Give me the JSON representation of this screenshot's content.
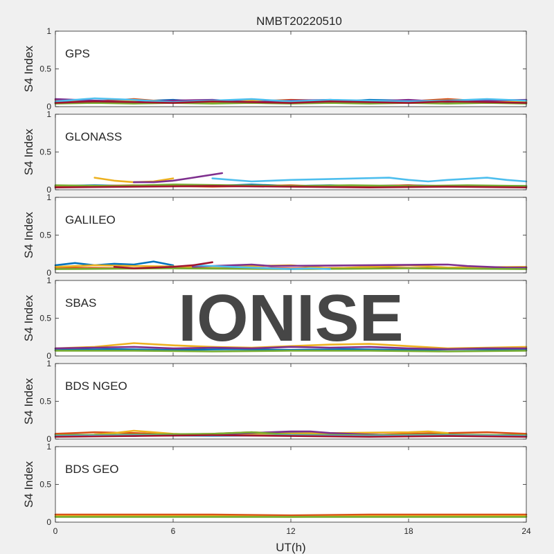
{
  "chart_data": {
    "type": "line",
    "title": "NMBT20220510",
    "xlabel": "UT(h)",
    "xlim": [
      0,
      24
    ],
    "xticks": [
      0,
      6,
      12,
      18,
      24
    ],
    "xtick_labels": [
      "0",
      "6",
      "12",
      "18",
      "24"
    ],
    "watermark": "IONISE",
    "series_colors": [
      "#0072BD",
      "#D95319",
      "#EDB120",
      "#7E2F8E",
      "#77AC30",
      "#4DBEEE",
      "#A2142F"
    ],
    "panels": [
      {
        "label": "GPS",
        "ylabel": "S4 Index",
        "ylim": [
          0,
          1
        ],
        "yticks": [
          0,
          0.5,
          1
        ],
        "ytick_labels": [
          "0",
          "0.5",
          "1"
        ],
        "series": [
          {
            "color": "#0072BD",
            "x": [
              0,
              2,
              4,
              6,
              8,
              10,
              12,
              14,
              16,
              18,
              20,
              22,
              24
            ],
            "y": [
              0.06,
              0.08,
              0.07,
              0.09,
              0.06,
              0.08,
              0.07,
              0.06,
              0.09,
              0.08,
              0.07,
              0.09,
              0.08
            ]
          },
          {
            "color": "#D95319",
            "x": [
              0,
              2,
              4,
              6,
              8,
              10,
              12,
              14,
              16,
              18,
              20,
              22,
              24
            ],
            "y": [
              0.09,
              0.07,
              0.1,
              0.06,
              0.08,
              0.07,
              0.09,
              0.08,
              0.06,
              0.07,
              0.1,
              0.07,
              0.06
            ]
          },
          {
            "color": "#EDB120",
            "x": [
              0,
              2,
              4,
              6,
              8,
              10,
              12,
              14,
              16,
              18,
              20,
              22,
              24
            ],
            "y": [
              0.05,
              0.06,
              0.08,
              0.07,
              0.05,
              0.09,
              0.06,
              0.07,
              0.05,
              0.06,
              0.08,
              0.06,
              0.07
            ]
          },
          {
            "color": "#7E2F8E",
            "x": [
              0,
              2,
              4,
              6,
              8,
              10,
              12,
              14,
              16,
              18,
              20,
              22,
              24
            ],
            "y": [
              0.1,
              0.08,
              0.06,
              0.08,
              0.09,
              0.06,
              0.08,
              0.09,
              0.07,
              0.09,
              0.06,
              0.08,
              0.09
            ]
          },
          {
            "color": "#77AC30",
            "x": [
              0,
              2,
              4,
              6,
              8,
              10,
              12,
              14,
              16,
              18,
              20,
              22,
              24
            ],
            "y": [
              0.04,
              0.05,
              0.04,
              0.05,
              0.04,
              0.05,
              0.04,
              0.05,
              0.04,
              0.05,
              0.04,
              0.05,
              0.04
            ]
          },
          {
            "color": "#4DBEEE",
            "x": [
              0,
              2,
              4,
              6,
              8,
              10,
              12,
              14,
              16,
              18,
              20,
              22,
              24
            ],
            "y": [
              0.07,
              0.11,
              0.09,
              0.06,
              0.08,
              0.1,
              0.07,
              0.09,
              0.08,
              0.07,
              0.08,
              0.1,
              0.08
            ]
          },
          {
            "color": "#A2142F",
            "x": [
              0,
              2,
              4,
              6,
              8,
              10,
              12,
              14,
              16,
              18,
              20,
              22,
              24
            ],
            "y": [
              0.05,
              0.07,
              0.06,
              0.05,
              0.07,
              0.06,
              0.05,
              0.07,
              0.06,
              0.05,
              0.07,
              0.06,
              0.05
            ]
          }
        ]
      },
      {
        "label": "GLONASS",
        "ylabel": "S4 Index",
        "ylim": [
          0,
          1
        ],
        "yticks": [
          0,
          0.5,
          1
        ],
        "ytick_labels": [
          "0",
          "0.5",
          "1"
        ],
        "series": [
          {
            "color": "#0072BD",
            "x": [
              0,
              2,
              4,
              6,
              8,
              10,
              12,
              14,
              16,
              18,
              20,
              22,
              24
            ],
            "y": [
              0.05,
              0.06,
              0.05,
              0.06,
              0.05,
              0.07,
              0.05,
              0.06,
              0.05,
              0.06,
              0.05,
              0.05,
              0.05
            ]
          },
          {
            "color": "#D95319",
            "x": [
              0,
              2,
              4,
              6,
              8,
              10,
              12,
              14,
              16,
              18,
              20,
              22,
              24
            ],
            "y": [
              0.04,
              0.05,
              0.06,
              0.05,
              0.04,
              0.05,
              0.06,
              0.04,
              0.05,
              0.06,
              0.04,
              0.05,
              0.04
            ]
          },
          {
            "color": "#EDB120",
            "x": [
              2,
              3,
              4,
              5,
              6
            ],
            "y": [
              0.16,
              0.12,
              0.1,
              0.11,
              0.15
            ]
          },
          {
            "color": "#7E2F8E",
            "x": [
              4,
              5,
              6,
              7,
              8.5
            ],
            "y": [
              0.1,
              0.1,
              0.12,
              0.16,
              0.22
            ]
          },
          {
            "color": "#77AC30",
            "x": [
              0,
              3,
              6,
              9,
              12,
              15,
              18,
              21,
              24
            ],
            "y": [
              0.06,
              0.05,
              0.07,
              0.06,
              0.05,
              0.06,
              0.05,
              0.06,
              0.05
            ]
          },
          {
            "color": "#4DBEEE",
            "x": [
              8,
              9,
              10,
              11,
              12,
              17,
              18,
              19,
              20,
              22,
              23,
              24
            ],
            "y": [
              0.15,
              0.13,
              0.11,
              0.12,
              0.13,
              0.16,
              0.13,
              0.11,
              0.13,
              0.16,
              0.13,
              0.11
            ]
          },
          {
            "color": "#A2142F",
            "x": [
              0,
              4,
              8,
              12,
              16,
              20,
              24
            ],
            "y": [
              0.03,
              0.04,
              0.05,
              0.04,
              0.03,
              0.04,
              0.03
            ]
          }
        ]
      },
      {
        "label": "GALILEO",
        "ylabel": "S4 Index",
        "ylim": [
          0,
          1
        ],
        "yticks": [
          0,
          0.5,
          1
        ],
        "ytick_labels": [
          "0",
          "0.5",
          "1"
        ],
        "series": [
          {
            "color": "#0072BD",
            "x": [
              0,
              1,
              2,
              3,
              4,
              5,
              6
            ],
            "y": [
              0.1,
              0.13,
              0.1,
              0.12,
              0.11,
              0.15,
              0.1
            ]
          },
          {
            "color": "#D95319",
            "x": [
              0,
              4,
              8,
              12,
              16,
              20,
              24
            ],
            "y": [
              0.07,
              0.06,
              0.08,
              0.06,
              0.07,
              0.06,
              0.07
            ]
          },
          {
            "color": "#EDB120",
            "x": [
              0,
              2,
              4,
              8,
              12,
              14,
              16,
              18,
              20,
              24
            ],
            "y": [
              0.08,
              0.1,
              0.09,
              0.08,
              0.1,
              0.06,
              0.08,
              0.1,
              0.07,
              0.08
            ]
          },
          {
            "color": "#7E2F8E",
            "x": [
              7,
              8,
              9,
              10,
              11,
              20,
              21,
              22,
              23,
              24
            ],
            "y": [
              0.08,
              0.09,
              0.1,
              0.11,
              0.09,
              0.11,
              0.09,
              0.08,
              0.07,
              0.07
            ]
          },
          {
            "color": "#77AC30",
            "x": [
              0,
              6,
              12,
              18,
              24
            ],
            "y": [
              0.05,
              0.06,
              0.05,
              0.06,
              0.05
            ]
          },
          {
            "color": "#4DBEEE",
            "x": [
              7,
              8,
              9,
              10,
              11,
              12,
              13,
              14
            ],
            "y": [
              0.1,
              0.09,
              0.08,
              0.07,
              0.06,
              0.05,
              0.06,
              0.05
            ]
          },
          {
            "color": "#A2142F",
            "x": [
              3,
              4,
              5,
              6,
              7,
              8
            ],
            "y": [
              0.08,
              0.06,
              0.07,
              0.08,
              0.1,
              0.14
            ]
          }
        ]
      },
      {
        "label": "SBAS",
        "ylabel": "S4 Index",
        "ylim": [
          0,
          1
        ],
        "yticks": [
          0,
          0.5,
          1
        ],
        "ytick_labels": [
          "0",
          "0.5",
          "1"
        ],
        "series": [
          {
            "color": "#0072BD",
            "x": [
              0,
              3,
              6,
              9,
              12,
              15,
              18,
              21,
              24
            ],
            "y": [
              0.08,
              0.09,
              0.08,
              0.09,
              0.08,
              0.09,
              0.08,
              0.09,
              0.08
            ]
          },
          {
            "color": "#EDB120",
            "x": [
              0,
              2,
              4,
              6,
              8,
              10,
              12,
              14,
              16,
              18,
              20,
              22,
              24
            ],
            "y": [
              0.1,
              0.12,
              0.17,
              0.14,
              0.12,
              0.11,
              0.13,
              0.15,
              0.16,
              0.13,
              0.1,
              0.11,
              0.12
            ]
          },
          {
            "color": "#7E2F8E",
            "x": [
              0,
              2,
              4,
              6,
              8,
              10,
              12,
              14,
              16,
              18,
              20,
              22,
              24
            ],
            "y": [
              0.1,
              0.11,
              0.12,
              0.1,
              0.11,
              0.1,
              0.12,
              0.11,
              0.12,
              0.1,
              0.09,
              0.1,
              0.1
            ]
          },
          {
            "color": "#77AC30",
            "x": [
              0,
              4,
              8,
              12,
              16,
              20,
              24
            ],
            "y": [
              0.07,
              0.07,
              0.06,
              0.07,
              0.07,
              0.06,
              0.07
            ]
          }
        ]
      },
      {
        "label": "BDS NGEO",
        "ylabel": "S4 Index",
        "ylim": [
          0,
          1
        ],
        "yticks": [
          0,
          0.5,
          1
        ],
        "ytick_labels": [
          "0",
          "0.5",
          "1"
        ],
        "series": [
          {
            "color": "#0072BD",
            "x": [
              0,
              2,
              4,
              6,
              8,
              10,
              12,
              14,
              16,
              18,
              20,
              22,
              24
            ],
            "y": [
              0.06,
              0.05,
              0.04,
              0.06,
              0.05,
              0.07,
              0.09,
              0.08,
              0.06,
              0.05,
              0.06,
              0.05,
              0.06
            ]
          },
          {
            "color": "#D95319",
            "x": [
              0,
              2,
              4,
              6,
              8,
              10,
              12,
              14,
              16,
              18,
              20,
              22,
              24
            ],
            "y": [
              0.07,
              0.09,
              0.08,
              0.06,
              0.07,
              0.09,
              0.07,
              0.06,
              0.05,
              0.07,
              0.08,
              0.09,
              0.07
            ]
          },
          {
            "color": "#EDB120",
            "x": [
              2,
              3,
              4,
              5,
              6,
              7,
              18,
              19,
              20
            ],
            "y": [
              0.06,
              0.08,
              0.11,
              0.09,
              0.07,
              0.06,
              0.09,
              0.1,
              0.08
            ]
          },
          {
            "color": "#7E2F8E",
            "x": [
              8,
              10,
              12,
              13,
              14,
              16,
              18,
              20,
              22,
              24
            ],
            "y": [
              0.06,
              0.08,
              0.1,
              0.1,
              0.08,
              0.06,
              0.05,
              0.04,
              0.05,
              0.04
            ]
          },
          {
            "color": "#77AC30",
            "x": [
              0,
              4,
              8,
              10,
              12,
              16,
              20,
              24
            ],
            "y": [
              0.05,
              0.06,
              0.07,
              0.09,
              0.06,
              0.05,
              0.06,
              0.05
            ]
          },
          {
            "color": "#4DBEEE",
            "x": [
              0,
              4,
              8,
              12,
              16,
              20,
              24
            ],
            "y": [
              0.04,
              0.05,
              0.04,
              0.05,
              0.04,
              0.05,
              0.04
            ]
          },
          {
            "color": "#A2142F",
            "x": [
              0,
              4,
              8,
              12,
              16,
              20,
              24
            ],
            "y": [
              0.03,
              0.04,
              0.05,
              0.04,
              0.03,
              0.04,
              0.03
            ]
          }
        ]
      },
      {
        "label": "BDS GEO",
        "ylabel": "S4 Index",
        "ylim": [
          0,
          1
        ],
        "yticks": [
          0,
          0.5,
          1
        ],
        "ytick_labels": [
          "0",
          "0.5",
          "1"
        ],
        "series": [
          {
            "color": "#D95319",
            "x": [
              0,
              4,
              8,
              12,
              16,
              20,
              24
            ],
            "y": [
              0.1,
              0.1,
              0.1,
              0.09,
              0.1,
              0.1,
              0.1
            ]
          },
          {
            "color": "#EDB120",
            "x": [
              0,
              4,
              8,
              12,
              16,
              20,
              24
            ],
            "y": [
              0.08,
              0.08,
              0.08,
              0.07,
              0.08,
              0.08,
              0.08
            ]
          },
          {
            "color": "#77AC30",
            "x": [
              0,
              4,
              8,
              12,
              16,
              20,
              24
            ],
            "y": [
              0.07,
              0.07,
              0.07,
              0.07,
              0.07,
              0.07,
              0.07
            ]
          }
        ]
      }
    ]
  }
}
